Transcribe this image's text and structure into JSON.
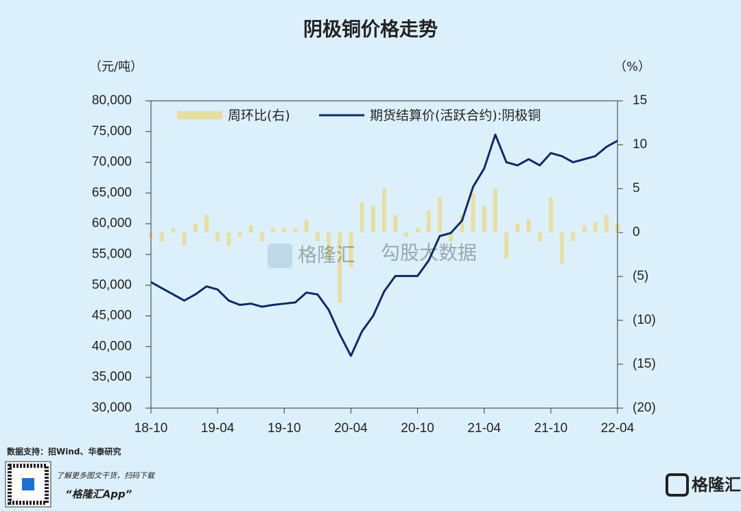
{
  "chart_data": {
    "type": "line",
    "title": "阴极铜价格走势",
    "y_axis_label": "（元/吨）",
    "y2_axis_label": "（%）",
    "categories": [
      "18-10",
      null,
      null,
      null,
      null,
      null,
      "19-04",
      null,
      null,
      null,
      null,
      null,
      "19-10",
      null,
      null,
      null,
      null,
      null,
      "20-04",
      null,
      null,
      null,
      null,
      null,
      "20-10",
      null,
      null,
      null,
      null,
      null,
      "21-04",
      null,
      null,
      null,
      null,
      null,
      "21-10",
      null,
      null,
      null,
      null,
      null,
      "22-04"
    ],
    "series": [
      {
        "name": "周环比(右)",
        "type": "bar",
        "axis": "y2",
        "color": "#e8dea2",
        "values": [
          -0.5,
          -1,
          0.5,
          -1.5,
          1,
          2,
          -1,
          -1.5,
          -0.5,
          0.8,
          -1,
          0.5,
          0.5,
          0.5,
          1.5,
          -1,
          -3,
          -8,
          -4,
          3.5,
          3,
          5,
          2,
          -0.5,
          0.5,
          2.5,
          4,
          -1,
          2,
          4.5,
          3,
          5,
          -3,
          1,
          1.5,
          -1,
          4,
          -3.5,
          -1,
          0.8,
          1.2,
          2,
          1
        ]
      },
      {
        "name": "期货结算价(活跃合约):阴极铜",
        "type": "line",
        "color": "#0d2a6b",
        "values": [
          50500,
          49500,
          48500,
          47500,
          48500,
          49800,
          49300,
          47500,
          46800,
          47000,
          46500,
          46800,
          47000,
          47200,
          48800,
          48500,
          46000,
          42000,
          38500,
          42500,
          45000,
          49000,
          51500,
          51500,
          51500,
          54000,
          58000,
          58500,
          60500,
          66000,
          69000,
          74500,
          70000,
          69500,
          70500,
          69500,
          71500,
          71000,
          70000,
          70500,
          71000,
          72500,
          73500
        ]
      }
    ],
    "ylim": [
      30000,
      80000
    ],
    "yticks": [
      {
        "value": 30000,
        "label": "30,000"
      },
      {
        "value": 35000,
        "label": "35,000"
      },
      {
        "value": 40000,
        "label": "40,000"
      },
      {
        "value": 45000,
        "label": "45,000"
      },
      {
        "value": 50000,
        "label": "50,000"
      },
      {
        "value": 55000,
        "label": "55,000"
      },
      {
        "value": 60000,
        "label": "60,000"
      },
      {
        "value": 65000,
        "label": "65,000"
      },
      {
        "value": 70000,
        "label": "70,000"
      },
      {
        "value": 75000,
        "label": "75,000"
      },
      {
        "value": 80000,
        "label": "80,000"
      }
    ],
    "y2lim": [
      -20,
      15
    ],
    "y2ticks": [
      {
        "value": -20,
        "label": "(20)"
      },
      {
        "value": -15,
        "label": "(15)"
      },
      {
        "value": -10,
        "label": "(10)"
      },
      {
        "value": -5,
        "label": "(5)"
      },
      0,
      5,
      10,
      15
    ],
    "legend": "top"
  },
  "source": "数据支持：招Wind、华泰研究",
  "watermark": {
    "brand": "格隆汇",
    "product": "勾股大数据"
  },
  "footer": {
    "promo": "了解更多图文干货，扫码下载",
    "app": "“格隆汇App”",
    "logo": "格隆汇"
  }
}
